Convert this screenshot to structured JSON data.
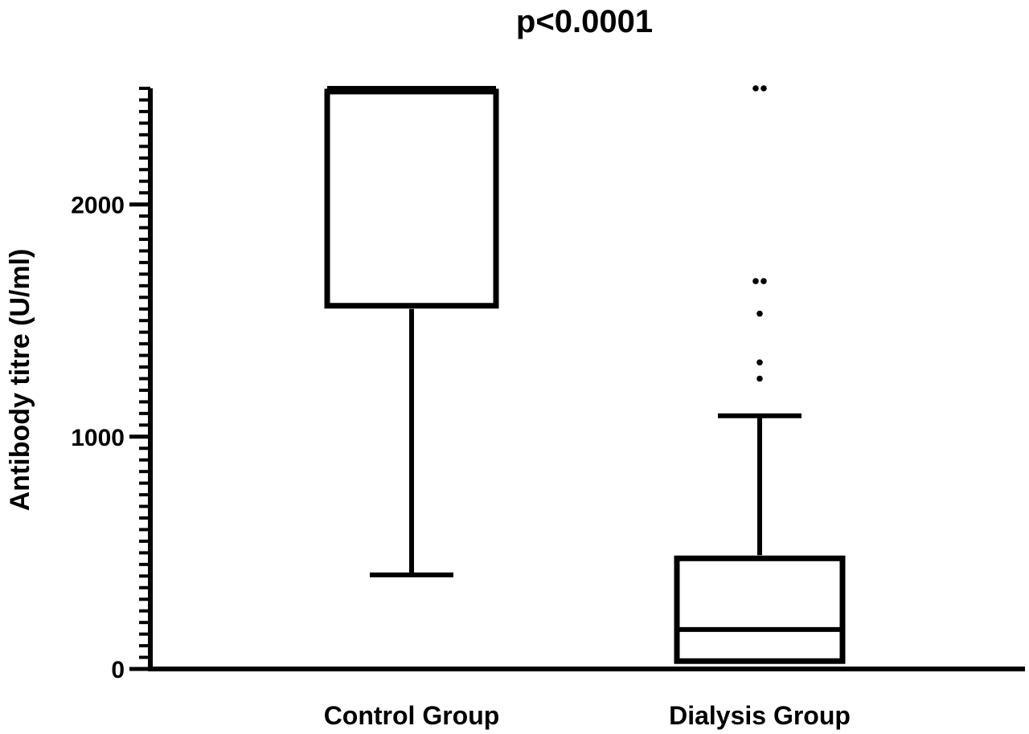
{
  "chart_data": {
    "type": "box",
    "title": "p<0.0001",
    "xlabel": "",
    "ylabel": "Antibody titre (U/ml)",
    "ylim": [
      0,
      2500
    ],
    "yticks": [
      0,
      1000,
      2000
    ],
    "ytick_labels": [
      "0",
      "1000",
      "2000"
    ],
    "minor_tick_step": 50,
    "grid": false,
    "legend": "none",
    "categories": [
      "Control Group",
      "Dialysis Group"
    ],
    "boxes": [
      {
        "category": "Control Group",
        "whisker_low": 405,
        "q1": 1550,
        "median": 2500,
        "q3": 2500,
        "whisker_high": 2500,
        "outliers": []
      },
      {
        "category": "Dialysis Group",
        "whisker_low": 20,
        "q1": 20,
        "median": 170,
        "q3": 490,
        "whisker_high": 1090,
        "outliers": [
          2500,
          2500,
          1670,
          1670,
          1530,
          1320,
          1250
        ]
      }
    ],
    "colors": {
      "stroke": "#000000",
      "box_fill": "#ffffff"
    }
  }
}
